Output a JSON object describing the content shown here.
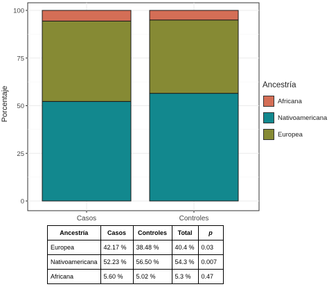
{
  "chart_data": {
    "type": "bar",
    "stacked": true,
    "categories": [
      "Casos",
      "Controles"
    ],
    "series": [
      {
        "name": "Nativoamericana",
        "values": [
          52.23,
          56.5
        ],
        "color": "#12888e"
      },
      {
        "name": "Europea",
        "values": [
          42.17,
          38.48
        ],
        "color": "#868a34"
      },
      {
        "name": "Africana",
        "values": [
          5.6,
          5.02
        ],
        "color": "#d46e56"
      }
    ],
    "xlabel": "",
    "ylabel": "Porcentaje",
    "ylim": [
      0,
      100
    ],
    "yticks": [
      0,
      25,
      50,
      75,
      100
    ],
    "grid": true,
    "legend": {
      "title": "Ancestría",
      "position": "right",
      "entries": [
        "Africana",
        "Nativoamericana",
        "Europea"
      ]
    }
  },
  "table": {
    "headers": [
      "Ancestría",
      "Casos",
      "Controles",
      "Total",
      "p"
    ],
    "rows": [
      [
        "Europea",
        "42.17 %",
        "38.48 %",
        "40.4 %",
        "0.03"
      ],
      [
        "Nativoamericana",
        "52.23 %",
        "56.50 %",
        "54.3 %",
        "0.007"
      ],
      [
        "Africana",
        "5.60 %",
        "5.02 %",
        "5.3 %",
        "0.47"
      ]
    ]
  }
}
